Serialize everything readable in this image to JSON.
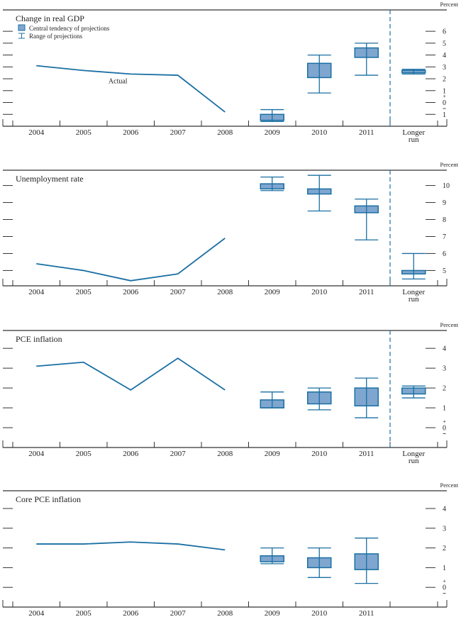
{
  "colors": {
    "line": "#1a6fa3",
    "box_fill": "#7fa6cf",
    "box_stroke": "#1a6fa3",
    "axis": "#333333",
    "text": "#222222"
  },
  "legend": {
    "central_tendency": "Central tendency of projections",
    "range": "Range of projections"
  },
  "actual_label": "Actual",
  "unit_label": "Percent",
  "chart_data": [
    {
      "type": "line+box",
      "title": "Change in real GDP",
      "ylabel": "Percent",
      "categories": [
        "2004",
        "2005",
        "2006",
        "2007",
        "2008",
        "2009",
        "2010",
        "2011",
        "Longer run"
      ],
      "ylim": [
        -2,
        7.8
      ],
      "yticks": [
        6,
        5,
        4,
        3,
        2,
        1,
        0,
        -1
      ],
      "ytick_labels": [
        "6",
        "5",
        "4",
        "3",
        "2",
        "1",
        "0",
        "1"
      ],
      "zero_plus_minus": true,
      "actual": {
        "x": [
          "2004",
          "2005",
          "2006",
          "2007",
          "2008"
        ],
        "values": [
          3.1,
          2.7,
          2.4,
          2.3,
          -0.8
        ]
      },
      "annotations": [
        {
          "text": "Actual",
          "near": "2006"
        }
      ],
      "projections": [
        {
          "x": "2009",
          "central_tendency": [
            -1.5,
            -1.0
          ],
          "range": [
            -1.6,
            -0.6
          ]
        },
        {
          "x": "2010",
          "central_tendency": [
            2.1,
            3.3
          ],
          "range": [
            0.8,
            4.0
          ]
        },
        {
          "x": "2011",
          "central_tendency": [
            3.8,
            4.6
          ],
          "range": [
            2.3,
            5.0
          ]
        },
        {
          "x": "Longer run",
          "central_tendency": [
            2.5,
            2.7
          ],
          "range": [
            2.4,
            2.8
          ]
        }
      ],
      "longer_run_divider": true,
      "legend": true
    },
    {
      "type": "line+box",
      "title": "Unemployment rate",
      "ylabel": "Percent",
      "categories": [
        "2004",
        "2005",
        "2006",
        "2007",
        "2008",
        "2009",
        "2010",
        "2011",
        "Longer run"
      ],
      "ylim": [
        4.1,
        10.9
      ],
      "yticks": [
        10,
        9,
        8,
        7,
        6,
        5
      ],
      "ytick_labels": [
        "10",
        "9",
        "8",
        "7",
        "6",
        "5"
      ],
      "zero_plus_minus": false,
      "actual": {
        "x": [
          "2004",
          "2005",
          "2006",
          "2007",
          "2008"
        ],
        "values": [
          5.4,
          5.0,
          4.4,
          4.8,
          6.9
        ]
      },
      "projections": [
        {
          "x": "2009",
          "central_tendency": [
            9.8,
            10.1
          ],
          "range": [
            9.7,
            10.5
          ]
        },
        {
          "x": "2010",
          "central_tendency": [
            9.5,
            9.8
          ],
          "range": [
            8.5,
            10.6
          ]
        },
        {
          "x": "2011",
          "central_tendency": [
            8.4,
            8.8
          ],
          "range": [
            6.8,
            9.2
          ]
        },
        {
          "x": "Longer run",
          "central_tendency": [
            4.8,
            5.0
          ],
          "range": [
            4.5,
            6.0
          ]
        }
      ],
      "longer_run_divider": true,
      "legend": false
    },
    {
      "type": "line+box",
      "title": "PCE inflation",
      "ylabel": "Percent",
      "categories": [
        "2004",
        "2005",
        "2006",
        "2007",
        "2008",
        "2009",
        "2010",
        "2011",
        "Longer run"
      ],
      "ylim": [
        -1.0,
        4.9
      ],
      "yticks": [
        4,
        3,
        2,
        1,
        0
      ],
      "ytick_labels": [
        "4",
        "3",
        "2",
        "1",
        "0"
      ],
      "zero_plus_minus": true,
      "actual": {
        "x": [
          "2004",
          "2005",
          "2006",
          "2007",
          "2008"
        ],
        "values": [
          3.1,
          3.3,
          1.9,
          3.5,
          1.9
        ]
      },
      "projections": [
        {
          "x": "2009",
          "central_tendency": [
            1.0,
            1.4
          ],
          "range": [
            1.0,
            1.8
          ]
        },
        {
          "x": "2010",
          "central_tendency": [
            1.2,
            1.8
          ],
          "range": [
            0.9,
            2.0
          ]
        },
        {
          "x": "2011",
          "central_tendency": [
            1.1,
            2.0
          ],
          "range": [
            0.5,
            2.5
          ]
        },
        {
          "x": "Longer run",
          "central_tendency": [
            1.7,
            2.0
          ],
          "range": [
            1.5,
            2.1
          ]
        }
      ],
      "longer_run_divider": true,
      "legend": false
    },
    {
      "type": "line+box",
      "title": "Core PCE inflation",
      "ylabel": "Percent",
      "categories": [
        "2004",
        "2005",
        "2006",
        "2007",
        "2008",
        "2009",
        "2010",
        "2011",
        ""
      ],
      "ylim": [
        -1.0,
        4.9
      ],
      "yticks": [
        4,
        3,
        2,
        1,
        0
      ],
      "ytick_labels": [
        "4",
        "3",
        "2",
        "1",
        "0"
      ],
      "zero_plus_minus": true,
      "actual": {
        "x": [
          "2004",
          "2005",
          "2006",
          "2007",
          "2008"
        ],
        "values": [
          2.2,
          2.2,
          2.3,
          2.2,
          1.9
        ]
      },
      "projections": [
        {
          "x": "2009",
          "central_tendency": [
            1.3,
            1.6
          ],
          "range": [
            1.2,
            2.0
          ]
        },
        {
          "x": "2010",
          "central_tendency": [
            1.0,
            1.5
          ],
          "range": [
            0.5,
            2.0
          ]
        },
        {
          "x": "2011",
          "central_tendency": [
            0.9,
            1.7
          ],
          "range": [
            0.2,
            2.5
          ]
        }
      ],
      "longer_run_divider": false,
      "legend": false
    }
  ]
}
